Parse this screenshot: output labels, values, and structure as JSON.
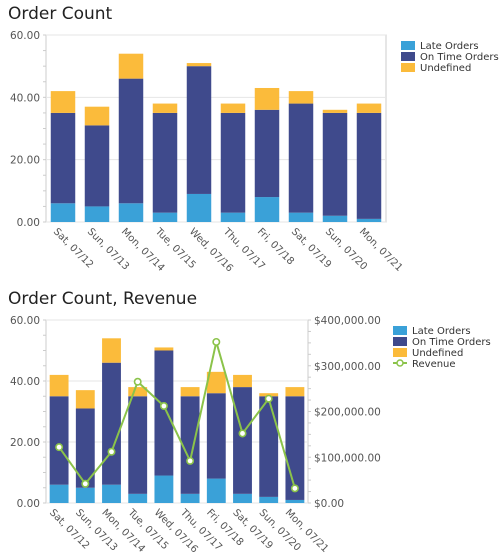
{
  "colors": {
    "late": "#3aa1d8",
    "ontime": "#3f4a8c",
    "undefined": "#fbbb3b",
    "revenue": "#8bc34a",
    "grid": "#e6e6e6",
    "axis": "#cccccc"
  },
  "chart_data": [
    {
      "type": "bar",
      "stacked": true,
      "title": "Order Count",
      "categories": [
        "Sat, 07/12",
        "Sun, 07/13",
        "Mon, 07/14",
        "Tue, 07/15",
        "Wed, 07/16",
        "Thu, 07/17",
        "Fri, 07/18",
        "Sat, 07/19",
        "Sun, 07/20",
        "Mon, 07/21"
      ],
      "series": [
        {
          "name": "Late Orders",
          "values": [
            6,
            5,
            6,
            3,
            9,
            3,
            8,
            3,
            2,
            1
          ]
        },
        {
          "name": "On Time Orders",
          "values": [
            29,
            26,
            40,
            32,
            41,
            32,
            28,
            35,
            33,
            34
          ]
        },
        {
          "name": "Undefined",
          "values": [
            7,
            6,
            8,
            3,
            1,
            3,
            7,
            4,
            1,
            3
          ]
        }
      ],
      "ylim": [
        0,
        60
      ],
      "yticks": [
        "0.00",
        "20.00",
        "40.00",
        "60.00"
      ],
      "grid": true,
      "legend": "top-right"
    },
    {
      "type": "bar",
      "stacked": true,
      "title": "Order Count, Revenue",
      "categories": [
        "Sat, 07/12",
        "Sun, 07/13",
        "Mon, 07/14",
        "Tue, 07/15",
        "Wed, 07/16",
        "Thu, 07/17",
        "Fri, 07/18",
        "Sat, 07/19",
        "Sun, 07/20",
        "Mon, 07/21"
      ],
      "series": [
        {
          "name": "Late Orders",
          "values": [
            6,
            5,
            6,
            3,
            9,
            3,
            8,
            3,
            2,
            1
          ]
        },
        {
          "name": "On Time Orders",
          "values": [
            29,
            26,
            40,
            32,
            41,
            32,
            28,
            35,
            33,
            34
          ]
        },
        {
          "name": "Undefined",
          "values": [
            7,
            6,
            8,
            3,
            1,
            3,
            7,
            4,
            1,
            3
          ]
        }
      ],
      "line_series": {
        "name": "Revenue",
        "type": "line",
        "axis": "right",
        "values": [
          122000,
          42000,
          112000,
          265000,
          212000,
          92000,
          352000,
          152000,
          228000,
          32000
        ]
      },
      "ylim": [
        0,
        60
      ],
      "yticks": [
        "0.00",
        "20.00",
        "40.00",
        "60.00"
      ],
      "y2lim": [
        0,
        400000
      ],
      "y2ticks": [
        "$0.00",
        "$100,000.00",
        "$200,000.00",
        "$300,000.00",
        "$400,000.00"
      ],
      "grid": true,
      "legend": "top-right"
    }
  ]
}
